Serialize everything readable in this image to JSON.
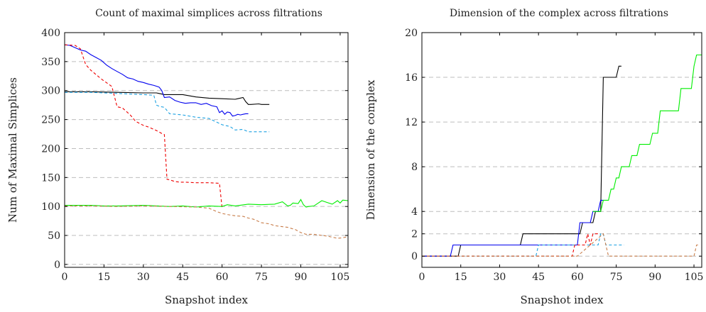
{
  "chart_data": [
    {
      "type": "line",
      "title": "Count of maximal simplices across filtrations",
      "xlabel": "Snapshot index",
      "ylabel": "Num of Maximal Simplices",
      "xlim": [
        0,
        108
      ],
      "ylim": [
        -5,
        400
      ],
      "xticks": [
        0,
        15,
        30,
        45,
        60,
        75,
        90,
        105
      ],
      "yticks": [
        0,
        50,
        100,
        150,
        200,
        250,
        300,
        350,
        400
      ],
      "grid": "horizontal dashed",
      "series": [
        {
          "color": "#000000",
          "dash": false,
          "x": [
            0,
            5,
            10,
            20,
            30,
            35,
            36,
            38,
            45,
            50,
            55,
            60,
            65,
            66,
            68,
            69,
            70,
            71,
            74,
            75,
            78
          ],
          "y": [
            298,
            298,
            298,
            297,
            296,
            296,
            295,
            293,
            293,
            289,
            287,
            286,
            285,
            286,
            288,
            281,
            276,
            276,
            277,
            276,
            276
          ]
        },
        {
          "color": "#0000ee",
          "dash": false,
          "x": [
            0,
            2,
            4,
            6,
            8,
            10,
            12,
            14,
            16,
            18,
            20,
            22,
            24,
            26,
            28,
            30,
            32,
            34,
            36,
            37,
            38,
            40,
            42,
            44,
            46,
            48,
            50,
            52,
            54,
            56,
            58,
            59,
            60,
            61,
            62,
            63,
            64,
            65,
            66,
            67,
            68,
            69,
            70
          ],
          "y": [
            379,
            378,
            374,
            370,
            368,
            362,
            357,
            352,
            344,
            338,
            333,
            328,
            322,
            320,
            316,
            314,
            311,
            309,
            306,
            300,
            288,
            289,
            283,
            280,
            278,
            279,
            279,
            276,
            278,
            274,
            272,
            262,
            265,
            259,
            263,
            262,
            256,
            257,
            259,
            258,
            259,
            260,
            260
          ]
        },
        {
          "color": "#1ba1e2",
          "dash": true,
          "x": [
            0,
            5,
            10,
            20,
            30,
            34,
            35,
            36,
            38,
            40,
            45,
            50,
            55,
            60,
            61,
            62,
            63,
            65,
            68,
            70,
            75,
            78
          ],
          "y": [
            297,
            297,
            297,
            295,
            293,
            292,
            275,
            273,
            271,
            260,
            258,
            254,
            252,
            241,
            240,
            239,
            238,
            232,
            233,
            229,
            229,
            229
          ]
        },
        {
          "color": "#ee0000",
          "dash": true,
          "x": [
            0,
            4,
            6,
            8,
            10,
            14,
            18,
            20,
            22,
            25,
            27,
            30,
            32,
            35,
            37,
            38,
            39,
            40,
            42,
            44,
            46,
            50,
            55,
            59,
            60
          ],
          "y": [
            379,
            378,
            372,
            345,
            335,
            320,
            307,
            272,
            270,
            258,
            247,
            240,
            237,
            231,
            226,
            224,
            147,
            146,
            143,
            142,
            142,
            141,
            141,
            140,
            97
          ]
        },
        {
          "color": "#00ee00",
          "dash": false,
          "x": [
            0,
            10,
            15,
            20,
            30,
            40,
            45,
            50,
            55,
            60,
            62,
            65,
            70,
            75,
            80,
            83,
            85,
            86,
            87,
            89,
            90,
            91,
            92,
            93,
            95,
            98,
            100,
            102,
            104,
            105,
            106,
            108
          ],
          "y": [
            102,
            102,
            101,
            101,
            102,
            100,
            101,
            99,
            101,
            100,
            103,
            101,
            104,
            103,
            104,
            108,
            101,
            102,
            106,
            105,
            112,
            103,
            99,
            100,
            101,
            110,
            107,
            104,
            110,
            106,
            111,
            110
          ]
        },
        {
          "color": "#c87d4a",
          "dash": true,
          "x": [
            0,
            10,
            20,
            30,
            40,
            50,
            55,
            58,
            60,
            62,
            65,
            68,
            70,
            72,
            75,
            78,
            80,
            85,
            88,
            90,
            92,
            95,
            98,
            100,
            104,
            106,
            108
          ],
          "y": [
            101,
            101,
            100,
            101,
            100,
            99,
            97,
            91,
            88,
            86,
            84,
            83,
            80,
            78,
            72,
            70,
            67,
            64,
            60,
            55,
            52,
            52,
            50,
            49,
            45,
            46,
            48
          ]
        }
      ]
    },
    {
      "type": "line",
      "title": "Dimension of the complex across filtrations",
      "xlabel": "Snapshot index",
      "ylabel": "Dimension of the complex",
      "xlim": [
        0,
        108
      ],
      "ylim": [
        -1,
        20
      ],
      "xticks": [
        0,
        15,
        30,
        45,
        60,
        75,
        90,
        105
      ],
      "yticks": [
        0,
        2,
        4,
        8,
        12,
        16,
        20
      ],
      "grid": "horizontal dashed",
      "series": [
        {
          "color": "#000000",
          "dash": false,
          "x": [
            0,
            14,
            15,
            38,
            39,
            61,
            62,
            66,
            67,
            69,
            70,
            75,
            76,
            77
          ],
          "y": [
            0,
            0,
            1,
            1,
            2,
            2,
            3,
            3,
            4,
            4,
            16,
            16,
            17,
            17
          ]
        },
        {
          "color": "#0000ee",
          "dash": false,
          "x": [
            0,
            11,
            12,
            60,
            61,
            65,
            66,
            68,
            69,
            70
          ],
          "y": [
            0,
            0,
            1,
            1,
            3,
            3,
            4,
            4,
            5,
            5
          ]
        },
        {
          "color": "#1ba1e2",
          "dash": true,
          "x": [
            0,
            44,
            45,
            68,
            69,
            70,
            71,
            78
          ],
          "y": [
            0,
            0,
            1,
            1,
            2,
            2,
            1,
            1
          ]
        },
        {
          "color": "#ee0000",
          "dash": true,
          "x": [
            0,
            58,
            59,
            63,
            64,
            65,
            66,
            67,
            68
          ],
          "y": [
            0,
            0,
            1,
            1,
            2,
            1,
            2,
            2,
            2
          ]
        },
        {
          "color": "#00ee00",
          "dash": false,
          "x": [
            66,
            69,
            70,
            72,
            73,
            74,
            75,
            76,
            77,
            78,
            79,
            80,
            81,
            82,
            83,
            84,
            85,
            88,
            89,
            91,
            92,
            95,
            96,
            99,
            100,
            104,
            105,
            106,
            107,
            108
          ],
          "y": [
            4,
            4,
            5,
            5,
            6,
            6,
            7,
            7,
            8,
            8,
            8,
            8,
            9,
            9,
            9,
            10,
            10,
            10,
            11,
            11,
            13,
            13,
            13,
            13,
            15,
            15,
            17,
            18,
            18,
            18
          ]
        },
        {
          "color": "#c87d4a",
          "dash": true,
          "x": [
            0,
            60,
            70,
            71,
            72,
            73,
            100,
            104,
            105,
            106,
            107
          ],
          "y": [
            0,
            0,
            2,
            1,
            0,
            0,
            0,
            0,
            0,
            1,
            1
          ]
        }
      ]
    }
  ]
}
